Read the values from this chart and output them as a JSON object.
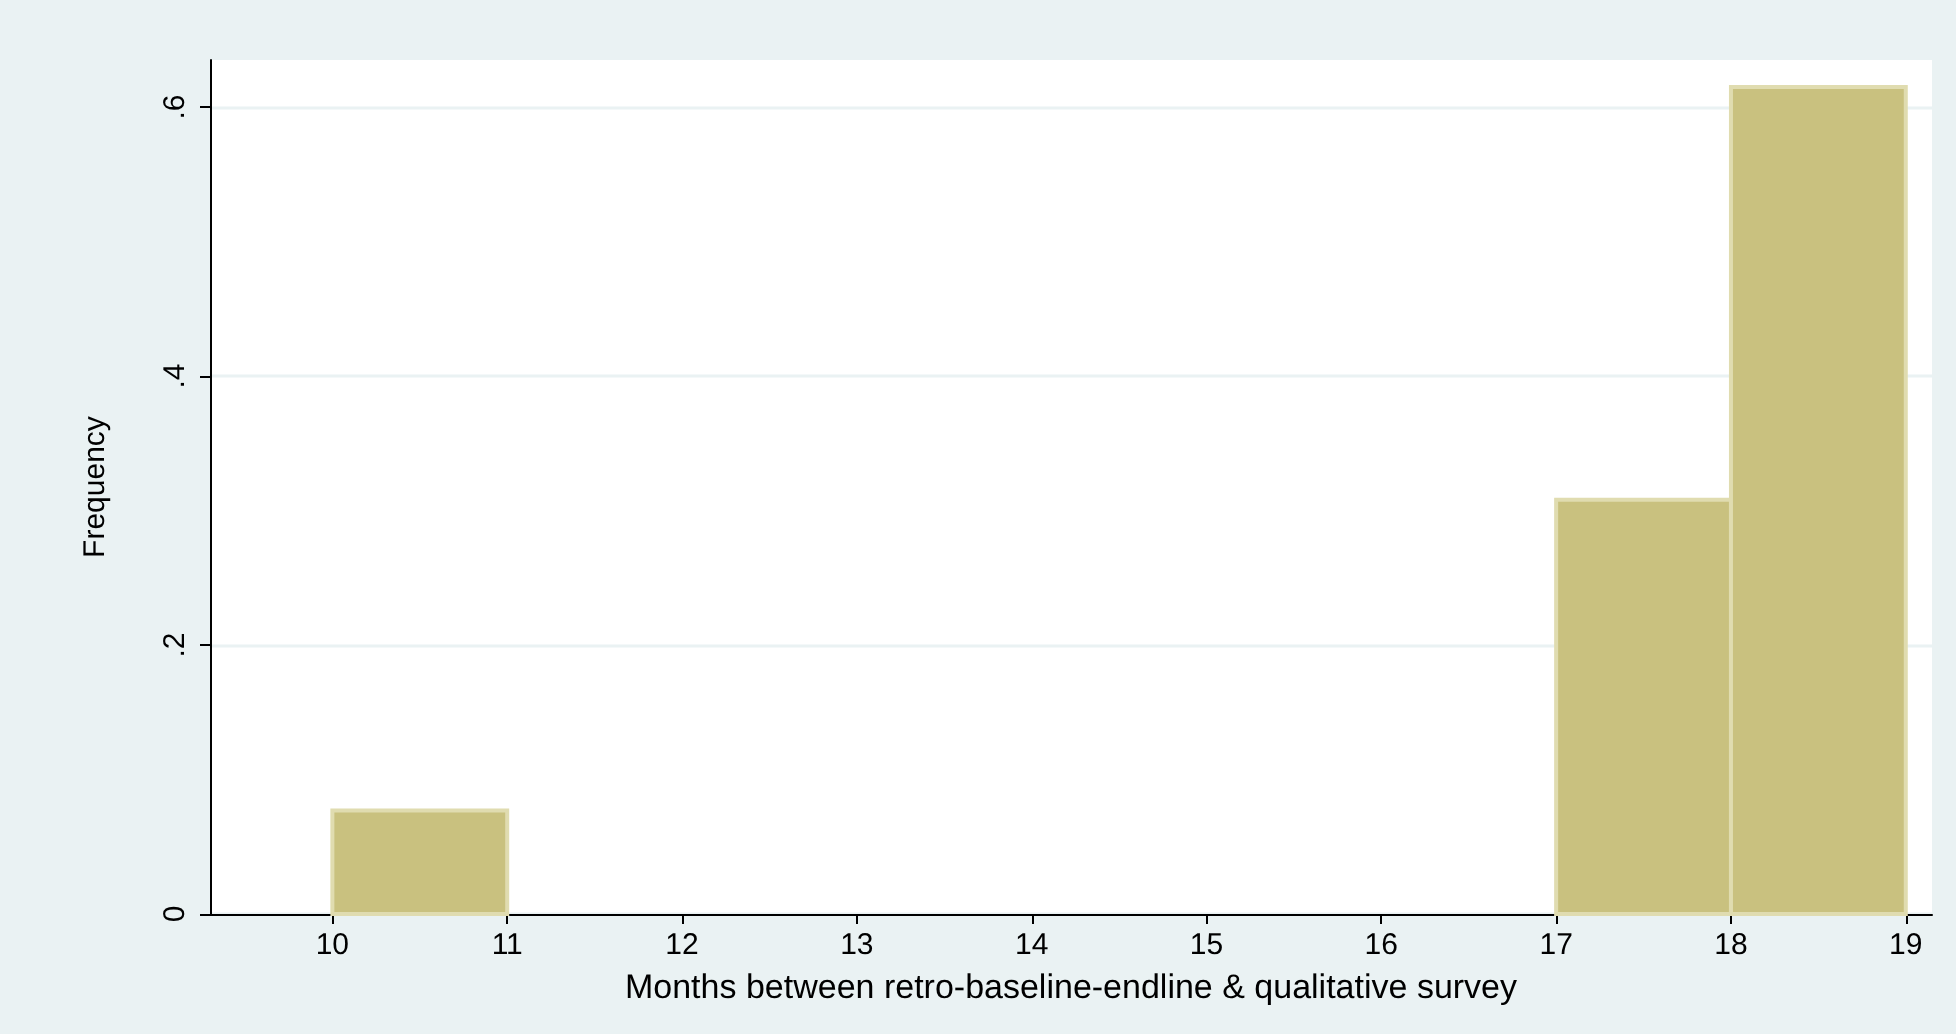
{
  "chart_data": {
    "type": "histogram",
    "xlabel": "Months between retro-baseline-endline & qualitative survey",
    "ylabel": "Frequency",
    "bins": [
      10,
      11,
      12,
      13,
      14,
      15,
      16,
      17,
      18,
      19
    ],
    "values": [
      0.077,
      0,
      0,
      0,
      0,
      0,
      0,
      0.308,
      0.615
    ],
    "color": "#c9c17f",
    "xlim": [
      9.3,
      19.15
    ],
    "xticks": [
      10,
      11,
      12,
      13,
      14,
      15,
      16,
      17,
      18,
      19
    ],
    "ylim": [
      0,
      0.635
    ],
    "yticks": [
      0,
      {
        "value": 0.2,
        "label": ".2"
      },
      {
        "value": 0.4,
        "label": ".4"
      },
      {
        "value": 0.6,
        "label": ".6"
      }
    ],
    "grid": "y"
  }
}
